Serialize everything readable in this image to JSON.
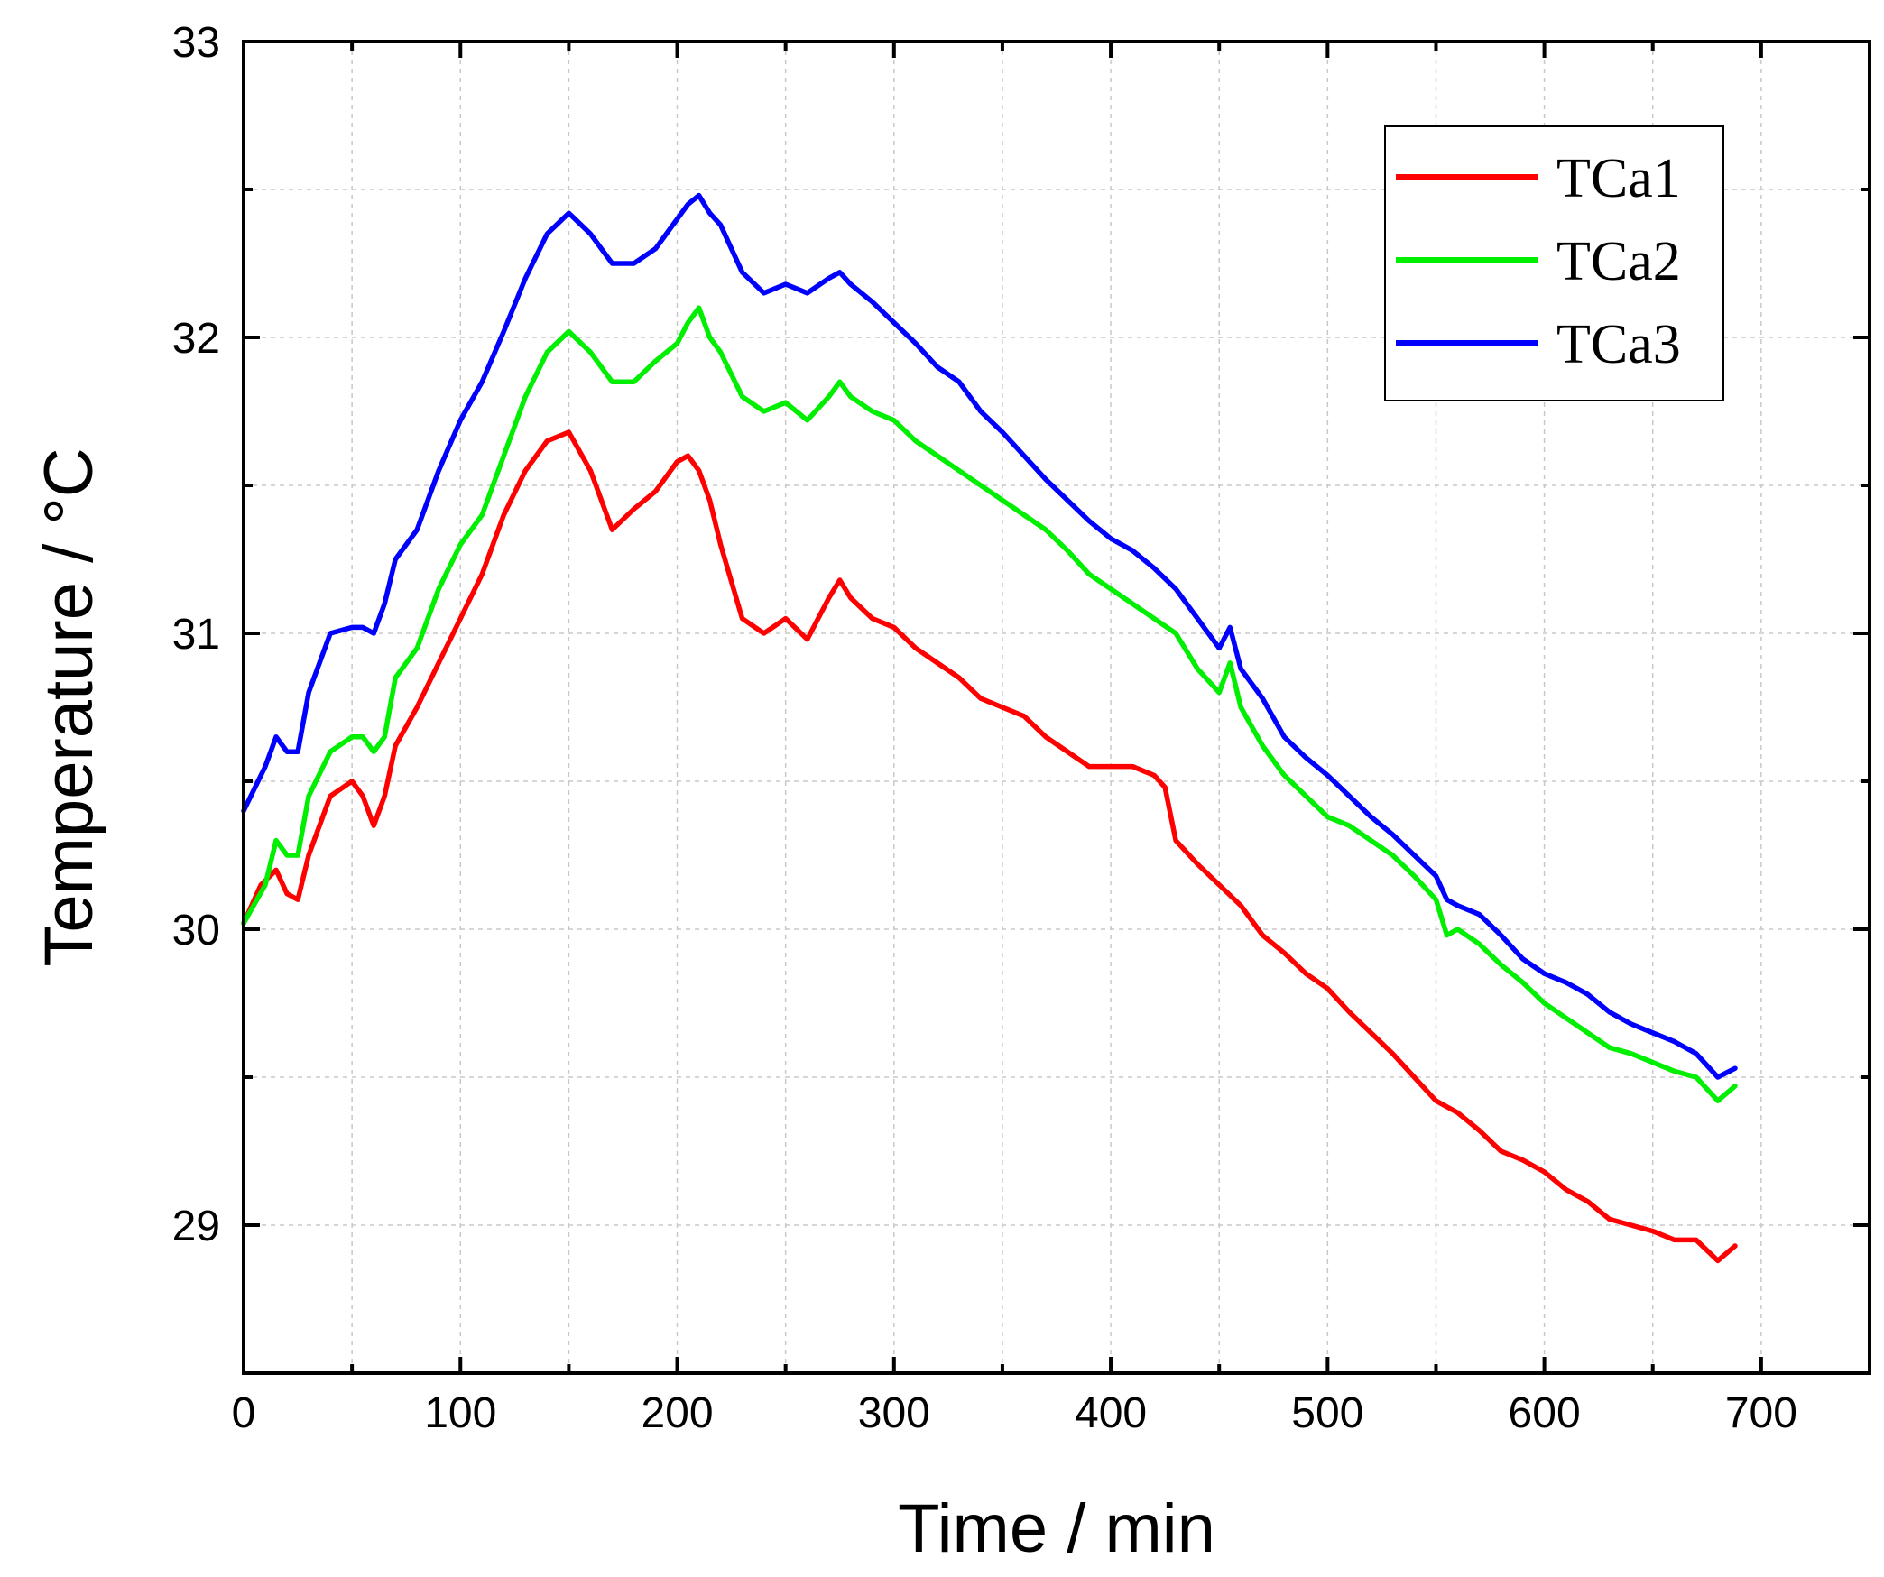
{
  "chart_data": {
    "type": "line",
    "title": "",
    "xlabel": "Time / min",
    "ylabel": "Temperature / °C",
    "xlim": [
      0,
      750
    ],
    "ylim": [
      28.5,
      33
    ],
    "x_ticks": [
      0,
      100,
      200,
      300,
      400,
      500,
      600,
      700
    ],
    "y_ticks": [
      29,
      30,
      31,
      32,
      33
    ],
    "grid": true,
    "legend_position": "top-right",
    "series": [
      {
        "name": "TCa1",
        "color": "#ff0000",
        "x": [
          0,
          8,
          15,
          20,
          25,
          30,
          40,
          50,
          55,
          60,
          65,
          70,
          80,
          90,
          100,
          110,
          120,
          130,
          140,
          150,
          160,
          170,
          180,
          190,
          200,
          205,
          210,
          215,
          220,
          230,
          240,
          250,
          260,
          270,
          275,
          280,
          290,
          300,
          310,
          320,
          330,
          340,
          350,
          360,
          370,
          380,
          390,
          400,
          410,
          420,
          425,
          430,
          440,
          450,
          460,
          470,
          480,
          490,
          500,
          510,
          520,
          530,
          540,
          550,
          560,
          570,
          580,
          590,
          600,
          610,
          620,
          630,
          640,
          650,
          660,
          670,
          680,
          688
        ],
        "values": [
          30.02,
          30.15,
          30.2,
          30.12,
          30.1,
          30.25,
          30.45,
          30.5,
          30.45,
          30.35,
          30.45,
          30.62,
          30.75,
          30.9,
          31.05,
          31.2,
          31.4,
          31.55,
          31.65,
          31.68,
          31.55,
          31.35,
          31.42,
          31.48,
          31.58,
          31.6,
          31.55,
          31.45,
          31.3,
          31.05,
          31.0,
          31.05,
          30.98,
          31.12,
          31.18,
          31.12,
          31.05,
          31.02,
          30.95,
          30.9,
          30.85,
          30.78,
          30.75,
          30.72,
          30.65,
          30.6,
          30.55,
          30.55,
          30.55,
          30.52,
          30.48,
          30.3,
          30.22,
          30.15,
          30.08,
          29.98,
          29.92,
          29.85,
          29.8,
          29.72,
          29.65,
          29.58,
          29.5,
          29.42,
          29.38,
          29.32,
          29.25,
          29.22,
          29.18,
          29.12,
          29.08,
          29.02,
          29.0,
          28.98,
          28.95,
          28.95,
          28.88,
          28.93
        ]
      },
      {
        "name": "TCa2",
        "color": "#00ee00",
        "x": [
          0,
          10,
          15,
          20,
          25,
          30,
          40,
          50,
          55,
          60,
          65,
          70,
          80,
          90,
          100,
          110,
          120,
          130,
          140,
          150,
          160,
          170,
          180,
          190,
          200,
          205,
          210,
          215,
          220,
          230,
          240,
          250,
          260,
          270,
          275,
          280,
          290,
          300,
          310,
          320,
          330,
          340,
          350,
          360,
          370,
          380,
          390,
          400,
          410,
          420,
          430,
          440,
          450,
          455,
          460,
          470,
          480,
          490,
          500,
          510,
          520,
          530,
          540,
          550,
          555,
          560,
          570,
          580,
          590,
          600,
          610,
          620,
          630,
          640,
          650,
          660,
          670,
          680,
          688
        ],
        "values": [
          30.02,
          30.15,
          30.3,
          30.25,
          30.25,
          30.45,
          30.6,
          30.65,
          30.65,
          30.6,
          30.65,
          30.85,
          30.95,
          31.15,
          31.3,
          31.4,
          31.6,
          31.8,
          31.95,
          32.02,
          31.95,
          31.85,
          31.85,
          31.92,
          31.98,
          32.05,
          32.1,
          32.0,
          31.95,
          31.8,
          31.75,
          31.78,
          31.72,
          31.8,
          31.85,
          31.8,
          31.75,
          31.72,
          31.65,
          31.6,
          31.55,
          31.5,
          31.45,
          31.4,
          31.35,
          31.28,
          31.2,
          31.15,
          31.1,
          31.05,
          31.0,
          30.88,
          30.8,
          30.9,
          30.75,
          30.62,
          30.52,
          30.45,
          30.38,
          30.35,
          30.3,
          30.25,
          30.18,
          30.1,
          29.98,
          30.0,
          29.95,
          29.88,
          29.82,
          29.75,
          29.7,
          29.65,
          29.6,
          29.58,
          29.55,
          29.52,
          29.5,
          29.42,
          29.47
        ]
      },
      {
        "name": "TCa3",
        "color": "#0000ff",
        "x": [
          0,
          10,
          15,
          20,
          25,
          30,
          40,
          50,
          55,
          60,
          65,
          70,
          80,
          90,
          100,
          110,
          120,
          130,
          140,
          150,
          160,
          170,
          180,
          190,
          200,
          205,
          210,
          215,
          220,
          230,
          240,
          250,
          260,
          270,
          275,
          280,
          290,
          300,
          310,
          320,
          330,
          340,
          350,
          360,
          370,
          380,
          390,
          400,
          410,
          420,
          430,
          440,
          450,
          455,
          460,
          470,
          480,
          490,
          500,
          510,
          520,
          530,
          540,
          550,
          555,
          560,
          570,
          580,
          590,
          600,
          610,
          620,
          630,
          640,
          650,
          660,
          670,
          680,
          688
        ],
        "values": [
          30.4,
          30.55,
          30.65,
          30.6,
          30.6,
          30.8,
          31.0,
          31.02,
          31.02,
          31.0,
          31.1,
          31.25,
          31.35,
          31.55,
          31.72,
          31.85,
          32.02,
          32.2,
          32.35,
          32.42,
          32.35,
          32.25,
          32.25,
          32.3,
          32.4,
          32.45,
          32.48,
          32.42,
          32.38,
          32.22,
          32.15,
          32.18,
          32.15,
          32.2,
          32.22,
          32.18,
          32.12,
          32.05,
          31.98,
          31.9,
          31.85,
          31.75,
          31.68,
          31.6,
          31.52,
          31.45,
          31.38,
          31.32,
          31.28,
          31.22,
          31.15,
          31.05,
          30.95,
          31.02,
          30.88,
          30.78,
          30.65,
          30.58,
          30.52,
          30.45,
          30.38,
          30.32,
          30.25,
          30.18,
          30.1,
          30.08,
          30.05,
          29.98,
          29.9,
          29.85,
          29.82,
          29.78,
          29.72,
          29.68,
          29.65,
          29.62,
          29.58,
          29.5,
          29.53
        ]
      }
    ]
  }
}
